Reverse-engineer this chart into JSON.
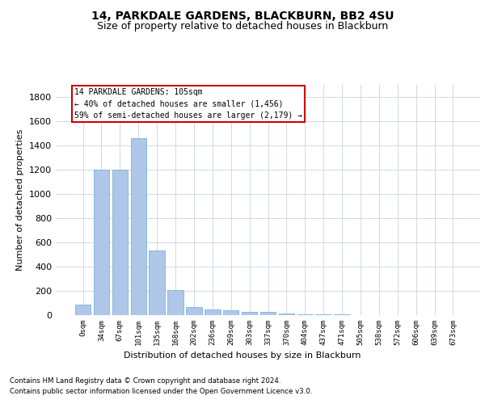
{
  "title": "14, PARKDALE GARDENS, BLACKBURN, BB2 4SU",
  "subtitle": "Size of property relative to detached houses in Blackburn",
  "xlabel": "Distribution of detached houses by size in Blackburn",
  "ylabel": "Number of detached properties",
  "footnote1": "Contains HM Land Registry data © Crown copyright and database right 2024.",
  "footnote2": "Contains public sector information licensed under the Open Government Licence v3.0.",
  "annotation_line1": "14 PARKDALE GARDENS: 105sqm",
  "annotation_line2": "← 40% of detached houses are smaller (1,456)",
  "annotation_line3": "59% of semi-detached houses are larger (2,179) →",
  "bar_labels": [
    "0sqm",
    "34sqm",
    "67sqm",
    "101sqm",
    "135sqm",
    "168sqm",
    "202sqm",
    "236sqm",
    "269sqm",
    "303sqm",
    "337sqm",
    "370sqm",
    "404sqm",
    "437sqm",
    "471sqm",
    "505sqm",
    "538sqm",
    "572sqm",
    "606sqm",
    "639sqm",
    "673sqm"
  ],
  "bar_values": [
    90,
    1200,
    1200,
    1460,
    535,
    205,
    70,
    50,
    40,
    30,
    25,
    15,
    10,
    10,
    5,
    3,
    2,
    2,
    1,
    1,
    1
  ],
  "highlight_index": 3,
  "bar_color": "#aec6e8",
  "bar_edge_color": "#6fa8d8",
  "background_color": "#ffffff",
  "grid_color": "#d0d8e8",
  "annotation_box_color": "#ffffff",
  "annotation_box_edge": "#cc0000",
  "ylim": [
    0,
    1900
  ],
  "yticks": [
    0,
    200,
    400,
    600,
    800,
    1000,
    1200,
    1400,
    1600,
    1800
  ]
}
